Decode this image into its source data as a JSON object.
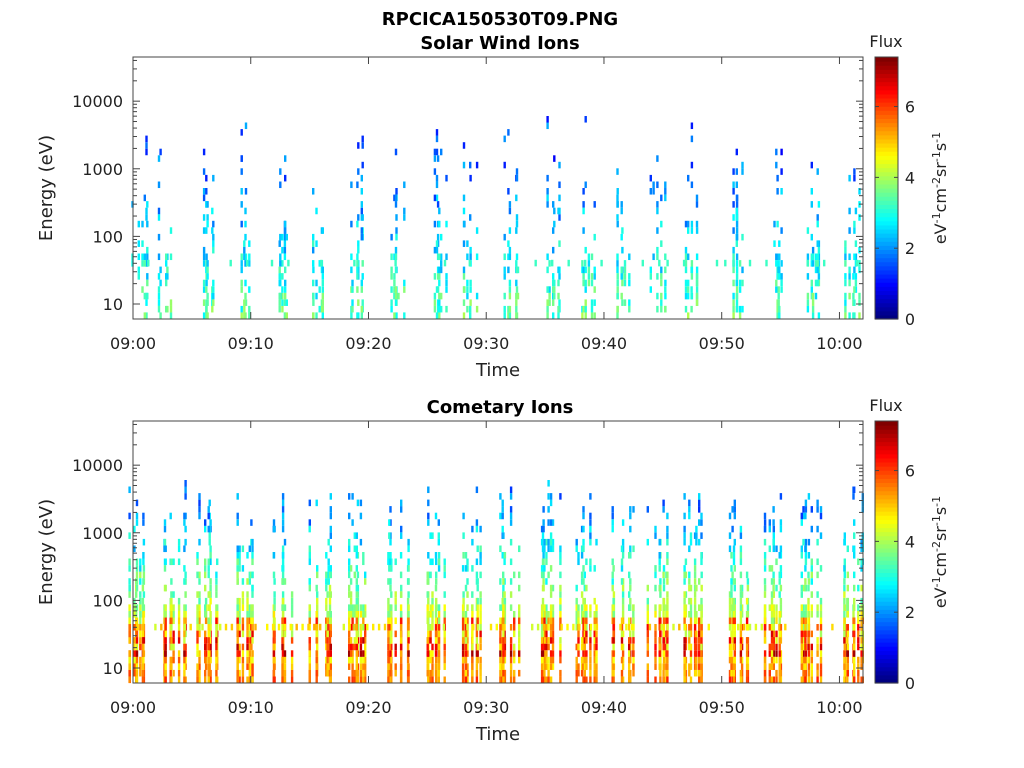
{
  "figure": {
    "filename_title": "RPCICA150530T09.PNG"
  },
  "chart_data": [
    {
      "type": "heatmap",
      "title": "Solar Wind Ions",
      "xlabel": "Time",
      "ylabel": "Energy (eV)",
      "x_ticks": [
        "09:00",
        "09:10",
        "09:20",
        "09:30",
        "09:40",
        "09:50",
        "10:00"
      ],
      "x_range_minutes": [
        0,
        62
      ],
      "y_scale": "log",
      "y_ticks": [
        {
          "value": 10,
          "label": "10"
        },
        {
          "value": 100,
          "label": "100"
        },
        {
          "value": 1000,
          "label": "1000"
        },
        {
          "value": 10000,
          "label": "10000"
        }
      ],
      "y_range": [
        6,
        45000
      ],
      "colorbar": {
        "title": "Flux",
        "label": "eV-1cm-2sr-1s-1",
        "range": [
          0,
          7.4
        ],
        "ticks": [
          {
            "value": 0,
            "label": "0"
          },
          {
            "value": 2,
            "label": "2"
          },
          {
            "value": 4,
            "label": "4"
          },
          {
            "value": 6,
            "label": "6"
          }
        ]
      },
      "colormap": "jet",
      "bursts_minutes": [
        0.5,
        2.5,
        6.3,
        9.5,
        12.5,
        15.8,
        19.0,
        22.5,
        26.0,
        28.5,
        32.0,
        35.5,
        38.5,
        41.5,
        44.5,
        47.5,
        51.5,
        54.5,
        57.5,
        61.0
      ],
      "activity_note_minutes": [
        23,
        62
      ],
      "flux_level": {
        "low_energy": 3.4,
        "high_energy": 1.5
      }
    },
    {
      "type": "heatmap",
      "title": "Cometary Ions",
      "xlabel": "Time",
      "ylabel": "Energy (eV)",
      "x_ticks": [
        "09:00",
        "09:10",
        "09:20",
        "09:30",
        "09:40",
        "09:50",
        "10:00"
      ],
      "x_range_minutes": [
        0,
        62
      ],
      "y_scale": "log",
      "y_ticks": [
        {
          "value": 10,
          "label": "10"
        },
        {
          "value": 100,
          "label": "100"
        },
        {
          "value": 1000,
          "label": "1000"
        },
        {
          "value": 10000,
          "label": "10000"
        }
      ],
      "y_range": [
        6,
        45000
      ],
      "colorbar": {
        "title": "Flux",
        "label": "eV-1cm-2sr-1s-1",
        "range": [
          0,
          7.4
        ],
        "ticks": [
          {
            "value": 0,
            "label": "0"
          },
          {
            "value": 2,
            "label": "2"
          },
          {
            "value": 4,
            "label": "4"
          },
          {
            "value": 6,
            "label": "6"
          }
        ]
      },
      "colormap": "jet",
      "bursts_minutes": [
        0.5,
        3.5,
        6.3,
        9.5,
        12.5,
        15.8,
        19.0,
        22.5,
        25.5,
        28.5,
        32.0,
        35.5,
        38.5,
        41.5,
        44.5,
        47.5,
        51.5,
        54.5,
        57.5,
        61.0
      ],
      "flux_level": {
        "low_energy": 5.6,
        "high_energy": 2.0
      }
    }
  ]
}
